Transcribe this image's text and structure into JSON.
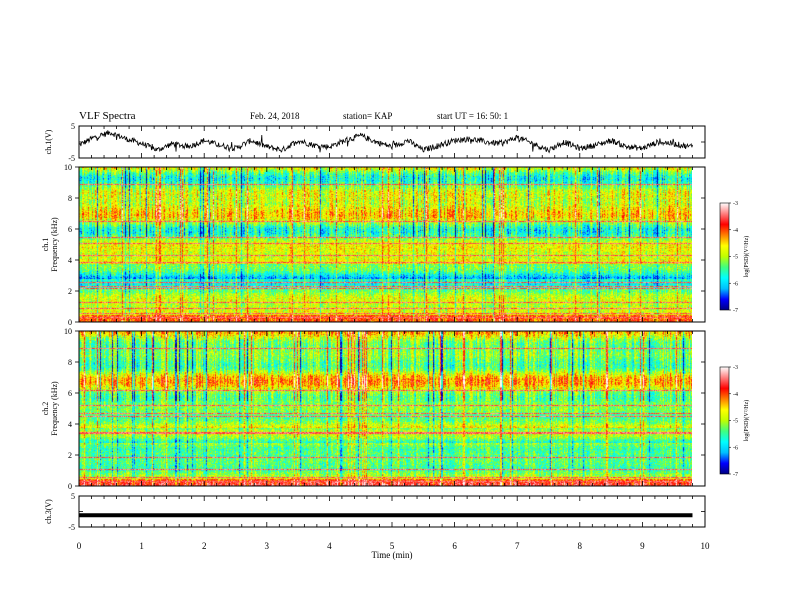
{
  "header": {
    "title": "VLF Spectra",
    "date": "Feb. 24, 2018",
    "station": "station= KAP",
    "start": "start  UT =   16: 50: 1"
  },
  "chart_data": [
    {
      "type": "line",
      "panel": "ch1-waveform",
      "ylabel": "ch.1(V)",
      "ylim": [
        -5,
        5
      ],
      "yticks": [
        "5",
        "-5"
      ],
      "xlim": [
        0,
        10
      ],
      "x_min": [
        0.0,
        0.25,
        0.5,
        0.75,
        1.0,
        1.25,
        1.5,
        1.75,
        2.0,
        2.25,
        2.5,
        2.75,
        3.0,
        3.25,
        3.5,
        3.75,
        4.0,
        4.25,
        4.5,
        4.75,
        5.0,
        5.25,
        5.5,
        5.75,
        6.0,
        6.25,
        6.5,
        6.75,
        7.0,
        7.25,
        7.5,
        7.75,
        8.0,
        8.25,
        8.5,
        8.75,
        9.0,
        9.25,
        9.5,
        9.75,
        9.8
      ],
      "values": [
        -1.0,
        1.5,
        3.0,
        1.0,
        -0.5,
        -2.5,
        -0.5,
        -1.5,
        0.5,
        -1.0,
        -2.0,
        0.5,
        -1.5,
        -2.5,
        0.5,
        -1.0,
        -1.5,
        0.5,
        2.0,
        0.0,
        -1.5,
        0.5,
        -2.5,
        -1.0,
        0.5,
        1.0,
        0.0,
        -0.5,
        1.5,
        -0.5,
        -2.5,
        0.0,
        -2.0,
        -1.0,
        0.5,
        -1.5,
        -2.0,
        0.0,
        -0.5,
        -1.5,
        -1.0
      ]
    },
    {
      "type": "heatmap",
      "panel": "ch1-spectrogram",
      "title": "ch.1",
      "ylabel": "Frequency (kHz)",
      "ylim": [
        0,
        10
      ],
      "yticks": [
        "0",
        "2",
        "4",
        "6",
        "8",
        "10"
      ],
      "xlim": [
        0,
        10
      ],
      "colorbar": {
        "label": "log(PSD)(V²/Hz)",
        "range": [
          -7,
          -3
        ],
        "ticks": [
          "-3",
          "-4",
          "-5",
          "-6",
          "-7"
        ]
      },
      "lines_khz": [
        0.3,
        0.6,
        0.9,
        1.3,
        2.2,
        2.35,
        2.6,
        3.9,
        4.3,
        5.1,
        5.5,
        6.5,
        8.9
      ]
    },
    {
      "type": "heatmap",
      "panel": "ch2-spectrogram",
      "title": "ch.2",
      "ylabel": "Frequency (kHz)",
      "ylim": [
        0,
        10
      ],
      "yticks": [
        "0",
        "2",
        "4",
        "6",
        "8",
        "10"
      ],
      "xlim": [
        0,
        10
      ],
      "colorbar": {
        "label": "log(PSD)(V²/Hz)",
        "range": [
          -7,
          -3
        ],
        "ticks": [
          "-3",
          "-4",
          "-5",
          "-6",
          "-7"
        ]
      },
      "lines_khz": [
        0.3,
        0.6,
        1.1,
        1.9,
        3.4,
        3.5,
        4.5,
        4.7,
        5.2,
        6.2,
        8.9
      ]
    },
    {
      "type": "line",
      "panel": "ch3-waveform",
      "ylabel": "ch.3(V)",
      "ylim": [
        -5,
        5
      ],
      "yticks": [
        "5",
        "-5"
      ],
      "xlim": [
        0,
        10
      ],
      "x_min": [
        0.0,
        9.8
      ],
      "values": [
        -1.2,
        -1.2
      ]
    }
  ],
  "x_axis": {
    "xlabel": "Time (min)",
    "ticks": [
      "0",
      "1",
      "2",
      "3",
      "4",
      "5",
      "6",
      "7",
      "8",
      "9",
      "10"
    ]
  },
  "colors": {
    "colormap": [
      "#000080",
      "#0000ff",
      "#00c0ff",
      "#00ffff",
      "#40ff80",
      "#c0ff00",
      "#ffff00",
      "#ff8000",
      "#ff0000",
      "#ff8080",
      "#ffffff"
    ]
  }
}
